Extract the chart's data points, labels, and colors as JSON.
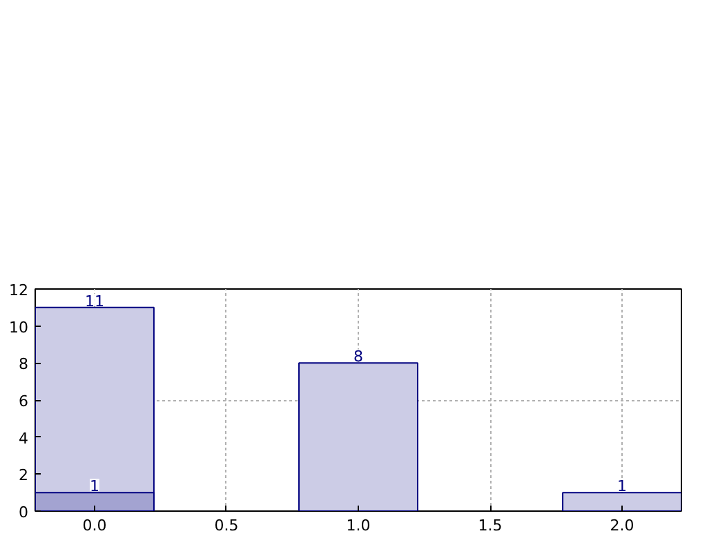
{
  "chart_data": {
    "type": "bar",
    "x": [
      0,
      1,
      2
    ],
    "series": [
      {
        "color": "#cccce6",
        "values": [
          11,
          8,
          1
        ]
      },
      {
        "color": "#a3a3d1",
        "x": [
          0
        ],
        "values": [
          1
        ]
      }
    ],
    "xlim": [
      -0.225,
      2.225
    ],
    "xticks": [
      {
        "value": 0,
        "label": "0.0"
      },
      {
        "value": 0.5,
        "label": "0.5"
      },
      {
        "value": 1,
        "label": "1.0"
      },
      {
        "value": 1.5,
        "label": "1.5"
      },
      {
        "value": 2,
        "label": "2.0"
      }
    ],
    "ylim": [
      0,
      12
    ],
    "yticks": [
      0,
      2,
      4,
      6,
      8,
      10,
      12
    ],
    "grid": true,
    "data_labels": true
  }
}
